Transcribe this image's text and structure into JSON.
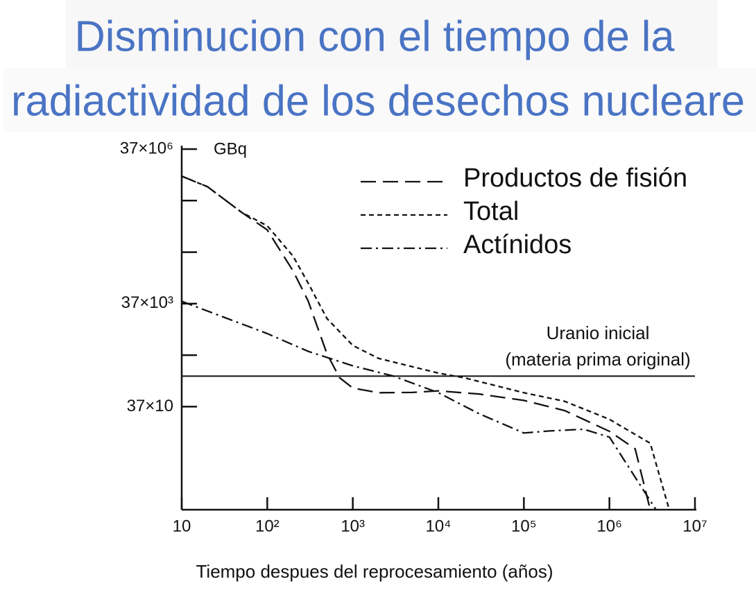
{
  "chart_data": {
    "type": "line",
    "title": [
      "Disminucion con el tiempo de la",
      "radiactividad de los desechos nucleare"
    ],
    "y_unit": "GBq",
    "x_label": "Tiempo despues del reprocesamiento (años)",
    "xscale": "log",
    "yscale": "log",
    "xlim": [
      10,
      10000000
    ],
    "ylim": [
      3.7,
      37000000
    ],
    "xticks": [
      10,
      {
        "value": 100,
        "label": "10²"
      },
      {
        "value": 1000,
        "label": "10³"
      },
      {
        "value": 10000,
        "label": "10⁴"
      },
      {
        "value": 100000,
        "label": "10⁵"
      },
      {
        "value": 1000000,
        "label": "10⁶"
      },
      {
        "value": 10000000,
        "label": "10⁷"
      }
    ],
    "yticks": [
      {
        "value": 370,
        "label": "37×10"
      },
      {
        "value": 37000,
        "label": "37×10³"
      },
      {
        "value": 37000000,
        "label": "37×10⁶"
      }
    ],
    "y_minor_ticks": [
      3700,
      370000,
      3700000
    ],
    "series": [
      {
        "name": "Productos de fisión",
        "color": "#111111",
        "dash": "22,10",
        "x": [
          10,
          20,
          50,
          100,
          200,
          300,
          500,
          700,
          1000,
          2000,
          5000,
          10000,
          30000,
          100000,
          300000,
          1000000,
          2000000,
          3000000
        ],
        "values": [
          11000000,
          6900000,
          2200000,
          1000000,
          160000,
          42000,
          3900,
          1350,
          850,
          690,
          700,
          750,
          650,
          490,
          310,
          123,
          56,
          3.7
        ]
      },
      {
        "name": "Total",
        "color": "#111111",
        "dash": "7,5",
        "x": [
          10,
          20,
          50,
          100,
          200,
          300,
          500,
          1000,
          2000,
          5000,
          10000,
          20000,
          100000,
          300000,
          1000000,
          3000000,
          5000000
        ],
        "values": [
          11000000,
          6900000,
          2200000,
          1200000,
          310000,
          93000,
          19000,
          5700,
          3200,
          2200,
          1660,
          1350,
          690,
          470,
          210,
          72,
          3.7
        ]
      },
      {
        "name": "Actínidos",
        "color": "#111111",
        "dash": "16,6,3,6",
        "x": [
          10,
          100,
          300,
          1000,
          3000,
          10000,
          30000,
          100000,
          200000,
          500000,
          1000000,
          3500000
        ],
        "values": [
          41000,
          9700,
          4400,
          2300,
          1450,
          690,
          270,
          114,
          125,
          135,
          95,
          3.7
        ]
      }
    ],
    "reference_line": {
      "label": [
        "Uranio inicial",
        "(materia prima original)"
      ],
      "value": 1450,
      "color": "#111111"
    }
  }
}
